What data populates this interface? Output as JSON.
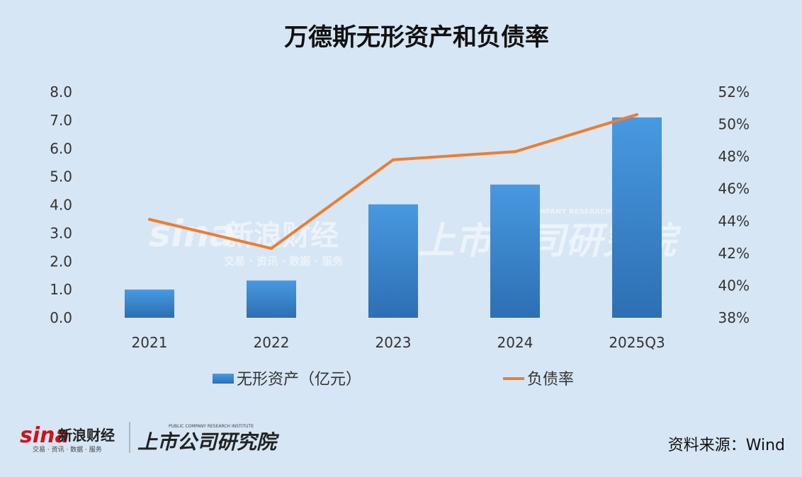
{
  "chart_data": {
    "type": "bar",
    "title": "万德斯无形资产和负债率",
    "categories": [
      "2021",
      "2022",
      "2023",
      "2024",
      "2025Q3"
    ],
    "series": [
      {
        "name": "无形资产（亿元）",
        "type": "bar",
        "axis": "left",
        "color": "#3a83cc",
        "values": [
          1.0,
          1.32,
          4.02,
          4.72,
          7.1
        ]
      },
      {
        "name": "负债率",
        "type": "line",
        "axis": "right",
        "color": "#ed7d31",
        "values": [
          44.1,
          42.3,
          47.8,
          48.3,
          50.6
        ]
      }
    ],
    "yleft": {
      "min": 0,
      "max": 8,
      "step": 1,
      "ticks": [
        "0.0",
        "1.0",
        "2.0",
        "3.0",
        "4.0",
        "5.0",
        "6.0",
        "7.0",
        "8.0"
      ]
    },
    "yright": {
      "min": 38,
      "max": 52,
      "step": 2,
      "ticks": [
        "38%",
        "40%",
        "42%",
        "44%",
        "46%",
        "48%",
        "50%",
        "52%"
      ]
    },
    "legend_position": "bottom",
    "grid": false
  },
  "source": "资料来源：Wind",
  "watermark": {
    "sina": "sina",
    "sina_cn": "新浪财经",
    "sina_sub": "交易 · 资讯 · 数据 · 服务",
    "institute_cn": "上市公司研究院",
    "institute_en": "PUBLIC COMPANY RESEARCH INSTITUTE"
  }
}
